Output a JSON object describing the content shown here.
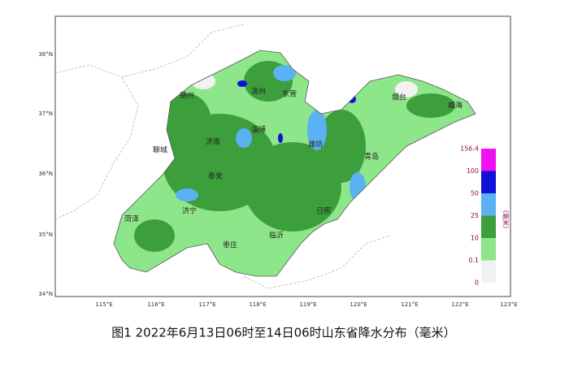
{
  "map": {
    "lat_labels": [
      "38°N",
      "37°N",
      "36°N",
      "35°N",
      "34°N"
    ],
    "lon_labels": [
      "115°E",
      "116°E",
      "117°E",
      "118°E",
      "119°E",
      "120°E",
      "121°E",
      "122°E",
      "123°E"
    ],
    "cities": [
      "德州",
      "滨州",
      "东营",
      "烟台",
      "威海",
      "淄博",
      "济南",
      "聊城",
      "潍坊",
      "青岛",
      "泰安",
      "济宁",
      "菏泽",
      "日照",
      "临沂",
      "枣庄"
    ],
    "legend": {
      "levels": [
        0,
        0.1,
        10,
        25,
        50,
        100,
        156.4
      ],
      "colors": [
        "#f2f2f2",
        "#8ee68a",
        "#3c9f3c",
        "#5ab2f2",
        "#1010d8",
        "#f010f0"
      ],
      "unit": "（毫米）"
    },
    "caption": "图1 2022年6月13日06时至14日06时山东省降水分布（毫米）"
  }
}
